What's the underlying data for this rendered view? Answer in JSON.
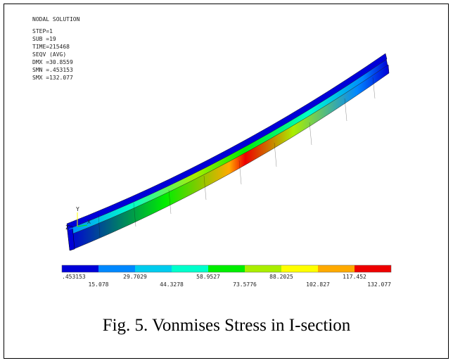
{
  "header": {
    "title": "NODAL SOLUTION",
    "lines": [
      "STEP=1",
      "SUB =19",
      "TIME=215468",
      "SEQV     (AVG)",
      "DMX =30.8559",
      "SMN =.453153",
      "SMX =132.077"
    ]
  },
  "legend": {
    "colors": [
      "#0000d8",
      "#0088ff",
      "#00ccee",
      "#00ffcc",
      "#00ee00",
      "#aaee00",
      "#ffff00",
      "#ffaa00",
      "#ee0000"
    ],
    "labels": [
      ".453153",
      "15.078",
      "29.7029",
      "44.3278",
      "58.9527",
      "73.5776",
      "88.2025",
      "102.827",
      "117.452",
      "132.077"
    ]
  },
  "axis_triad": {
    "y": "Y",
    "x": "X",
    "z": "Z"
  },
  "caption": "Fig. 5. Vonmises Stress in I-section"
}
